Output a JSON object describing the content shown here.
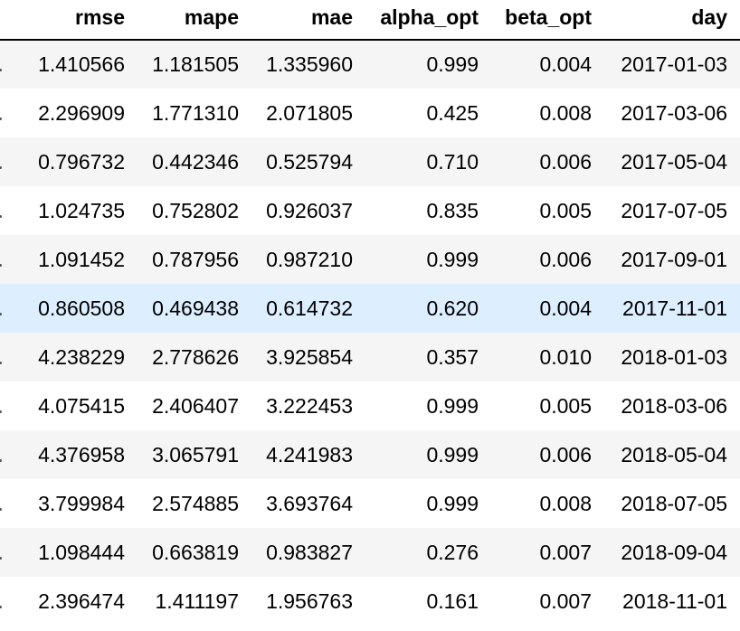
{
  "table": {
    "columns": [
      "rmse",
      "mape",
      "mae",
      "alpha_opt",
      "beta_opt",
      "day"
    ],
    "highlighted_row": 5,
    "highlight_color": "#ddeeff",
    "stripe_color": "#f5f5f5",
    "rows": [
      [
        "1.410566",
        "1.181505",
        "1.335960",
        "0.999",
        "0.004",
        "2017-01-03"
      ],
      [
        "2.296909",
        "1.771310",
        "2.071805",
        "0.425",
        "0.008",
        "2017-03-06"
      ],
      [
        "0.796732",
        "0.442346",
        "0.525794",
        "0.710",
        "0.006",
        "2017-05-04"
      ],
      [
        "1.024735",
        "0.752802",
        "0.926037",
        "0.835",
        "0.005",
        "2017-07-05"
      ],
      [
        "1.091452",
        "0.787956",
        "0.987210",
        "0.999",
        "0.006",
        "2017-09-01"
      ],
      [
        "0.860508",
        "0.469438",
        "0.614732",
        "0.620",
        "0.004",
        "2017-11-01"
      ],
      [
        "4.238229",
        "2.778626",
        "3.925854",
        "0.357",
        "0.010",
        "2018-01-03"
      ],
      [
        "4.075415",
        "2.406407",
        "3.222453",
        "0.999",
        "0.005",
        "2018-03-06"
      ],
      [
        "4.376958",
        "3.065791",
        "4.241983",
        "0.999",
        "0.006",
        "2018-05-04"
      ],
      [
        "3.799984",
        "2.574885",
        "3.693764",
        "0.999",
        "0.008",
        "2018-07-05"
      ],
      [
        "1.098444",
        "0.663819",
        "0.983827",
        "0.276",
        "0.007",
        "2018-09-04"
      ],
      [
        "2.396474",
        "1.411197",
        "1.956763",
        "0.161",
        "0.007",
        "2018-11-01"
      ]
    ]
  }
}
